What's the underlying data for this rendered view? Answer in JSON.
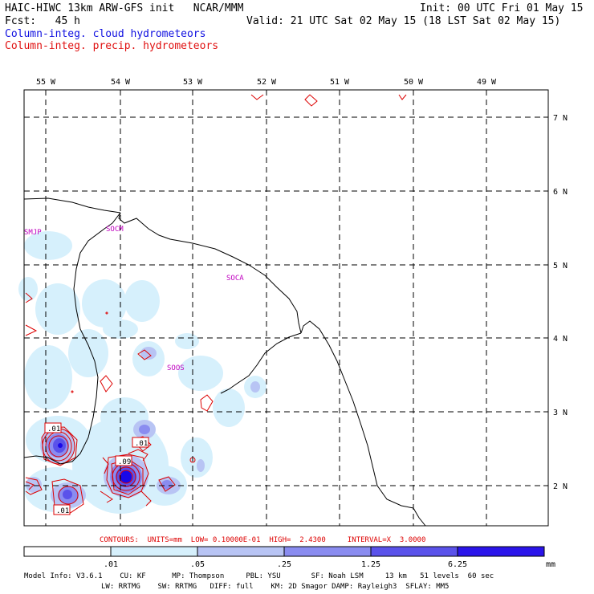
{
  "header": {
    "model_title": "HAIC-HIWC 13km ARW-GFS init   NCAR/MMM",
    "init": "Init: 00 UTC Fri 01 May 15",
    "fcst": "Fcst:   45 h",
    "valid": "Valid: 21 UTC Sat 02 May 15 (18 LST Sat 02 May 15)",
    "field1": "Column-integ. cloud hydrometeors",
    "field2": "Column-integ. precip. hydrometeors",
    "field1_color": "#1010e0",
    "field2_color": "#e01010"
  },
  "map": {
    "lon_labels": [
      "55 W",
      "54 W",
      "53 W",
      "52 W",
      "51 W",
      "50 W",
      "49 W"
    ],
    "lat_labels": [
      "7 N",
      "6 N",
      "5 N",
      "4 N",
      "3 N",
      "2 N"
    ],
    "stations": [
      "SMJP",
      "SOCM",
      "SOCA",
      "SOOS"
    ],
    "contour_labels": [
      ".01",
      ".01",
      ".09",
      ".01"
    ],
    "station_color": "#c000c0",
    "contour_color": "#dd0000"
  },
  "contours_info": {
    "prefix": "CONTOURS:  UNITS=mm  LOW= 0.10000E-01  HIGH=  2.4300     INTERVAL=X  3.0000"
  },
  "colorbar": {
    "ticks": [
      ".01",
      ".05",
      ".25",
      "1.25",
      "6.25",
      "mm"
    ],
    "colors": [
      "#ffffff",
      "#d6f0fc",
      "#b8c4f4",
      "#8a8cf0",
      "#5a52ea",
      "#2a14ea",
      "#1808e8"
    ]
  },
  "footer": {
    "line1": "Model Info: V3.6.1    CU: KF      MP: Thompson     PBL: YSU       SF: Noah LSM     13 km   51 levels  60 sec",
    "line2": "LW: RRTMG    SW: RRTMG   DIFF: full    KM: 2D Smagor DAMP: Rayleigh3  SFLAY: MM5"
  }
}
